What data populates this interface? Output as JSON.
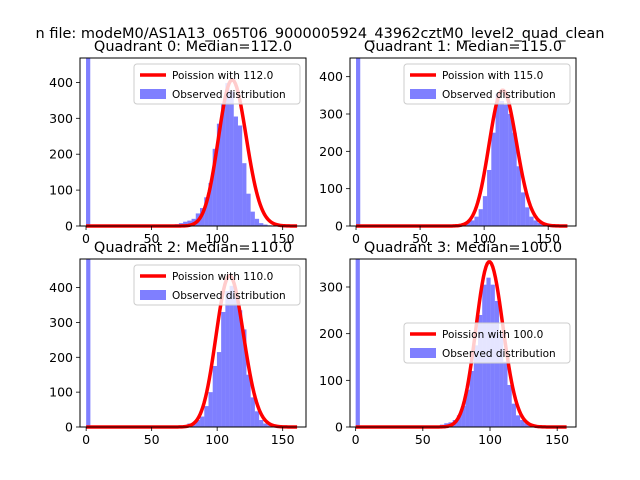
{
  "figure": {
    "suptitle": "n file: modeM0/AS1A13_065T06_9000005924_43962cztM0_level2_quad_clean"
  },
  "chart_data": [
    {
      "type": "bar",
      "title": "Quadrant 0: Median=112.0",
      "xlabel": "",
      "ylabel": "",
      "xlim": [
        -4.6,
        167.8
      ],
      "ylim": [
        0,
        468
      ],
      "xticks": [
        0,
        50,
        100,
        150
      ],
      "yticks": [
        0,
        100,
        200,
        300,
        400
      ],
      "grid": false,
      "legend": {
        "placement": "upper right",
        "entries": [
          {
            "label": "Poission with 112.0",
            "color": "#ff0000",
            "kind": "line"
          },
          {
            "label": "Observed distribution",
            "color": "#0000ff",
            "kind": "patch"
          }
        ]
      },
      "histogram": {
        "name": "Observed distribution",
        "color": "#0000ff",
        "opacity": 0.5,
        "bin_start": 0,
        "bin_width": 3.22,
        "values": [
          468,
          0,
          0,
          0,
          0,
          0,
          0,
          0,
          0,
          0,
          0,
          0,
          0,
          0,
          0,
          0,
          0,
          0,
          0,
          0,
          0,
          5,
          8,
          12,
          15,
          20,
          35,
          50,
          80,
          120,
          215,
          285,
          340,
          398,
          375,
          305,
          280,
          175,
          90,
          40,
          20,
          8,
          4,
          2,
          1,
          1,
          1,
          1,
          0,
          0
        ]
      },
      "poisson": {
        "name": "Poission with 112.0",
        "lambda": 112.0,
        "color": "#ff0000",
        "x_range": [
          0,
          161
        ]
      }
    },
    {
      "type": "bar",
      "title": "Quadrant 1: Median=115.0",
      "xlabel": "",
      "ylabel": "",
      "xlim": [
        -4.7,
        171.7
      ],
      "ylim": [
        0,
        450
      ],
      "xticks": [
        0,
        50,
        100,
        150
      ],
      "yticks": [
        0,
        100,
        200,
        300,
        400
      ],
      "grid": false,
      "legend": {
        "placement": "upper right",
        "entries": [
          {
            "label": "Poission with 115.0",
            "color": "#ff0000",
            "kind": "line"
          },
          {
            "label": "Observed distribution",
            "color": "#0000ff",
            "kind": "patch"
          }
        ]
      },
      "histogram": {
        "name": "Observed distribution",
        "color": "#0000ff",
        "opacity": 0.5,
        "bin_start": 0,
        "bin_width": 3.3,
        "values": [
          450,
          0,
          0,
          0,
          0,
          0,
          0,
          0,
          0,
          0,
          0,
          0,
          0,
          0,
          0,
          0,
          0,
          0,
          0,
          0,
          0,
          0,
          0,
          3,
          5,
          8,
          12,
          15,
          25,
          45,
          80,
          150,
          250,
          355,
          335,
          325,
          300,
          250,
          160,
          90,
          50,
          25,
          15,
          8,
          4,
          2,
          1,
          0,
          0,
          0
        ]
      },
      "poisson": {
        "name": "Poission with 115.0",
        "lambda": 115.0,
        "color": "#ff0000",
        "x_range": [
          0,
          165
        ]
      }
    },
    {
      "type": "bar",
      "title": "Quadrant 2: Median=110.0",
      "xlabel": "",
      "ylabel": "",
      "xlim": [
        -4.7,
        167.8
      ],
      "ylim": [
        0,
        482
      ],
      "xticks": [
        0,
        50,
        100,
        150
      ],
      "yticks": [
        0,
        100,
        200,
        300,
        400
      ],
      "grid": false,
      "legend": {
        "placement": "upper right",
        "entries": [
          {
            "label": "Poission with 110.0",
            "color": "#ff0000",
            "kind": "line"
          },
          {
            "label": "Observed distribution",
            "color": "#0000ff",
            "kind": "patch"
          }
        ]
      },
      "histogram": {
        "name": "Observed distribution",
        "color": "#0000ff",
        "opacity": 0.5,
        "bin_start": 0,
        "bin_width": 3.22,
        "values": [
          482,
          0,
          0,
          0,
          0,
          0,
          0,
          0,
          0,
          0,
          0,
          0,
          0,
          0,
          0,
          0,
          0,
          0,
          0,
          0,
          0,
          0,
          0,
          5,
          10,
          12,
          20,
          30,
          60,
          100,
          175,
          215,
          330,
          390,
          405,
          375,
          335,
          280,
          150,
          85,
          45,
          20,
          10,
          5,
          2,
          1,
          1,
          0,
          0,
          0
        ]
      },
      "poisson": {
        "name": "Poission with 110.0",
        "lambda": 110.0,
        "color": "#ff0000",
        "x_range": [
          0,
          161
        ]
      }
    },
    {
      "type": "bar",
      "title": "Quadrant 3: Median=100.0",
      "xlabel": "",
      "ylabel": "",
      "xlim": [
        -4.2,
        164.0
      ],
      "ylim": [
        0,
        360
      ],
      "xticks": [
        0,
        50,
        100,
        150
      ],
      "yticks": [
        0,
        100,
        200,
        300
      ],
      "grid": false,
      "legend": {
        "placement": "center right",
        "entries": [
          {
            "label": "Poission with 100.0",
            "color": "#ff0000",
            "kind": "line"
          },
          {
            "label": "Observed distribution",
            "color": "#0000ff",
            "kind": "patch"
          }
        ]
      },
      "histogram": {
        "name": "Observed distribution",
        "color": "#0000ff",
        "opacity": 0.5,
        "bin_start": 0,
        "bin_width": 3.14,
        "values": [
          360,
          0,
          0,
          0,
          0,
          0,
          0,
          0,
          0,
          0,
          0,
          0,
          0,
          0,
          0,
          0,
          0,
          0,
          2,
          3,
          5,
          8,
          10,
          15,
          25,
          45,
          80,
          120,
          175,
          240,
          305,
          320,
          305,
          270,
          200,
          140,
          90,
          50,
          25,
          15,
          8,
          5,
          3,
          2,
          1,
          1,
          0,
          0,
          0,
          0
        ]
      },
      "poisson": {
        "name": "Poission with 100.0",
        "lambda": 100.0,
        "color": "#ff0000",
        "x_range": [
          0,
          157
        ]
      }
    }
  ]
}
